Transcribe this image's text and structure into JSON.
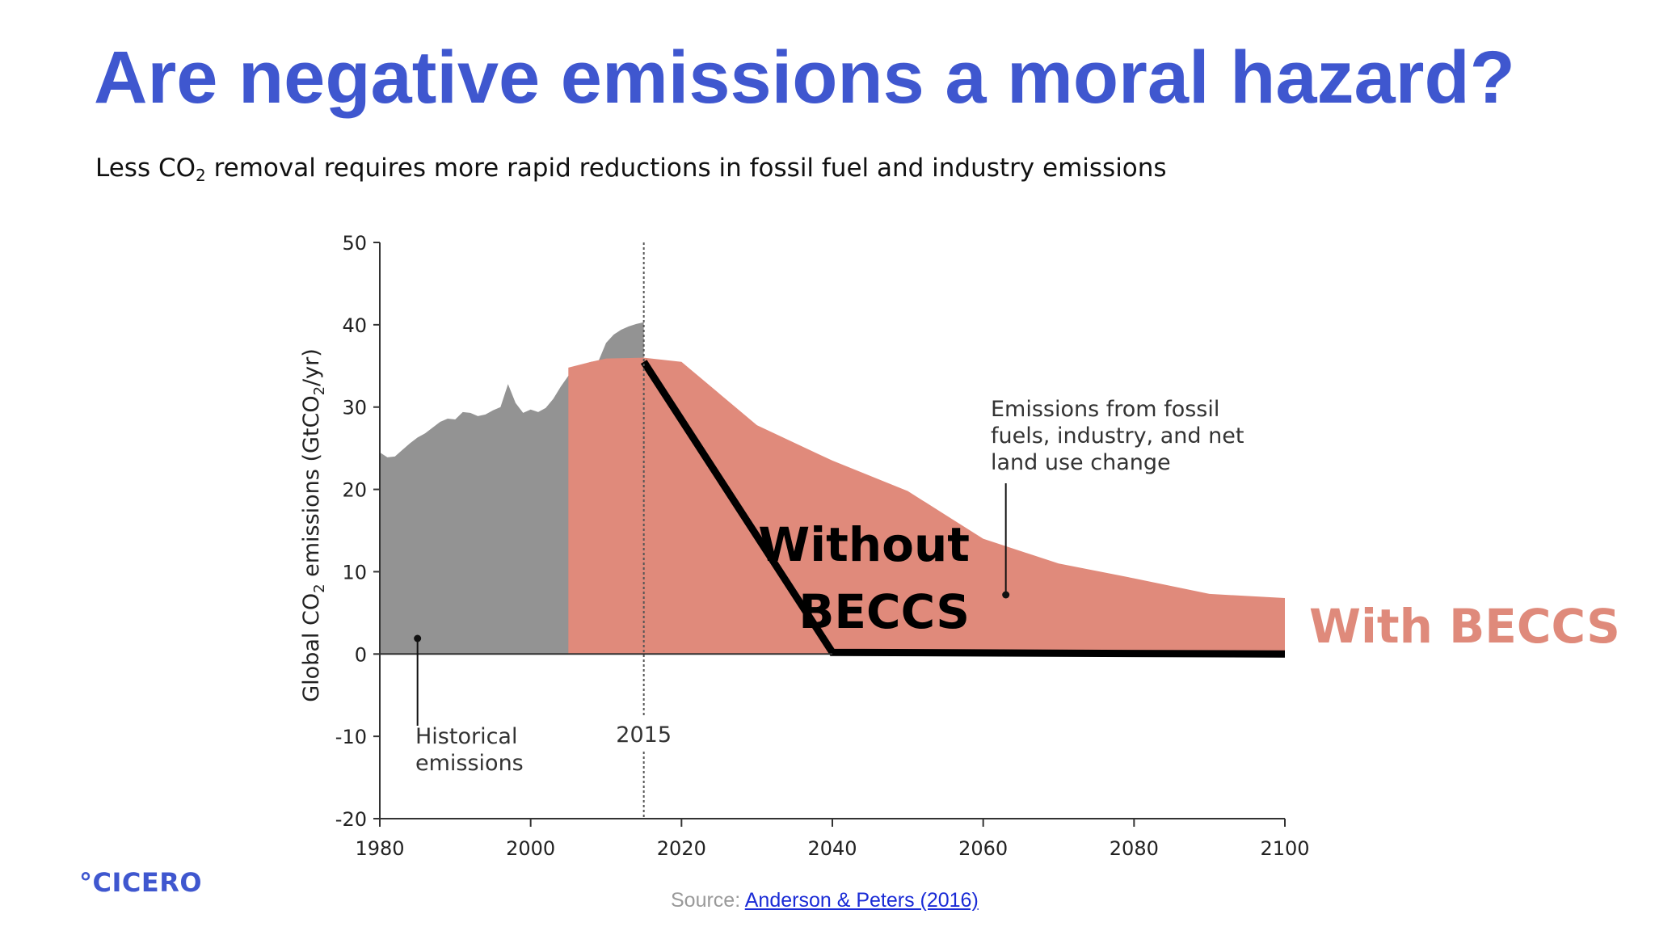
{
  "slide": {
    "title": "Are negative emissions a moral hazard?",
    "subtitle_pre": "Less CO",
    "subtitle_sub": "2",
    "subtitle_post": " removal requires more rapid reductions in fossil fuel and industry emissions",
    "logo_text": "°CICERO",
    "source_label": "Source: ",
    "source_link_text": "Anderson & Peters (2016)"
  },
  "colors": {
    "title": "#3f57cf",
    "historical": "#939393",
    "with_beccs": "#e08a7b",
    "without_beccs": "#000000",
    "with_beccs_label": "#df8a7b"
  },
  "chart_data": {
    "type": "area",
    "xlim": [
      1980,
      2100
    ],
    "ylim": [
      -20,
      50
    ],
    "x_ticks": [
      "1980",
      "2000",
      "2020",
      "2040",
      "2060",
      "2080",
      "2100"
    ],
    "y_ticks": [
      "50",
      "40",
      "30",
      "20",
      "10",
      "0",
      "-10",
      "-20"
    ],
    "ylabel_pre": "Global CO",
    "ylabel_sub": "2",
    "ylabel_post": " emissions (GtCO",
    "ylabel_sub2": "2",
    "ylabel_end": "/yr)",
    "marker_year": "2015",
    "annotations": {
      "historical": [
        "Historical",
        "emissions"
      ],
      "fossil": [
        "Emissions from fossil",
        "fuels, industry, and net",
        "land use change"
      ],
      "without_beccs": [
        "Without",
        "BECCS"
      ],
      "with_beccs": "With BECCS"
    },
    "series": [
      {
        "name": "Historical emissions",
        "x": [
          1980,
          1981,
          1982,
          1983,
          1984,
          1985,
          1986,
          1987,
          1988,
          1989,
          1990,
          1991,
          1992,
          1993,
          1994,
          1995,
          1996,
          1997,
          1998,
          1999,
          2000,
          2001,
          2002,
          2003,
          2004,
          2005,
          2006,
          2007,
          2008,
          2009,
          2010,
          2011,
          2012,
          2013,
          2014,
          2015
        ],
        "y": [
          24.5,
          23.9,
          24.0,
          24.8,
          25.6,
          26.3,
          26.8,
          27.5,
          28.2,
          28.6,
          28.5,
          29.4,
          29.3,
          28.9,
          29.1,
          29.6,
          30.0,
          32.8,
          30.5,
          29.3,
          29.7,
          29.4,
          29.9,
          31.0,
          32.5,
          33.8,
          34.8,
          35.2,
          35.5,
          35.6,
          37.8,
          38.8,
          39.4,
          39.8,
          40.1,
          40.3
        ]
      },
      {
        "name": "Emissions from fossil fuels, industry, and net land use change",
        "x": [
          2005,
          2008,
          2010,
          2015,
          2020,
          2030,
          2040,
          2050,
          2060,
          2070,
          2080,
          2090,
          2100
        ],
        "y": [
          34.8,
          35.5,
          35.9,
          36.0,
          35.5,
          27.8,
          23.5,
          19.8,
          14.0,
          11.0,
          9.2,
          7.3,
          6.8
        ]
      },
      {
        "name": "Without BECCS",
        "x": [
          2015,
          2040,
          2100
        ],
        "y": [
          35.5,
          0.2,
          0.0
        ]
      }
    ]
  }
}
